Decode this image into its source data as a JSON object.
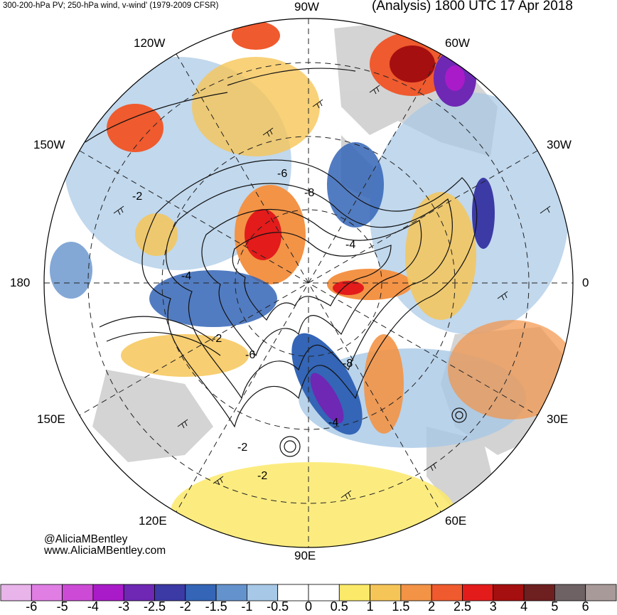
{
  "header": {
    "left_title": "300-200-hPa PV; 250-hPa wind, v-wind' (1979-2009 CFSR)",
    "right_title": "(Analysis) 1800 UTC 17 Apr 2018"
  },
  "longitude_labels": [
    "90W",
    "60W",
    "30W",
    "0",
    "30E",
    "60E",
    "90E",
    "120E",
    "150E",
    "180",
    "150W",
    "120W"
  ],
  "contour_labels": [
    "-6",
    "-8",
    "-2",
    "-4",
    "-4",
    "-2",
    "-6",
    "-8",
    "-4",
    "-2",
    "-2"
  ],
  "credits": {
    "handle": "@AliciaMBentley",
    "website": "www.AliciaMBentley.com"
  },
  "colorbar": {
    "colors": [
      "#e8b4ea",
      "#e07ee4",
      "#cc4ad6",
      "#a91bc8",
      "#6e28b4",
      "#3c3aa5",
      "#3465b6",
      "#6492cc",
      "#a7c8e6",
      "#ffffff",
      "#ffffff",
      "#fbe96a",
      "#f6c558",
      "#f39346",
      "#ef5a2e",
      "#e31b1b",
      "#a50f0f",
      "#6e1f1f",
      "#6e6265",
      "#a99a9a"
    ],
    "labels": [
      "-6",
      "-5",
      "-4",
      "-3",
      "-2.5",
      "-2",
      "-1.5",
      "-1",
      "-0.5",
      "0",
      "0.5",
      "1",
      "1.5",
      "2",
      "2.5",
      "3",
      "4",
      "5",
      "6"
    ]
  },
  "map_colors": {
    "land": "#cccccc",
    "pos": "#f6c558",
    "neg": "#6492cc"
  }
}
